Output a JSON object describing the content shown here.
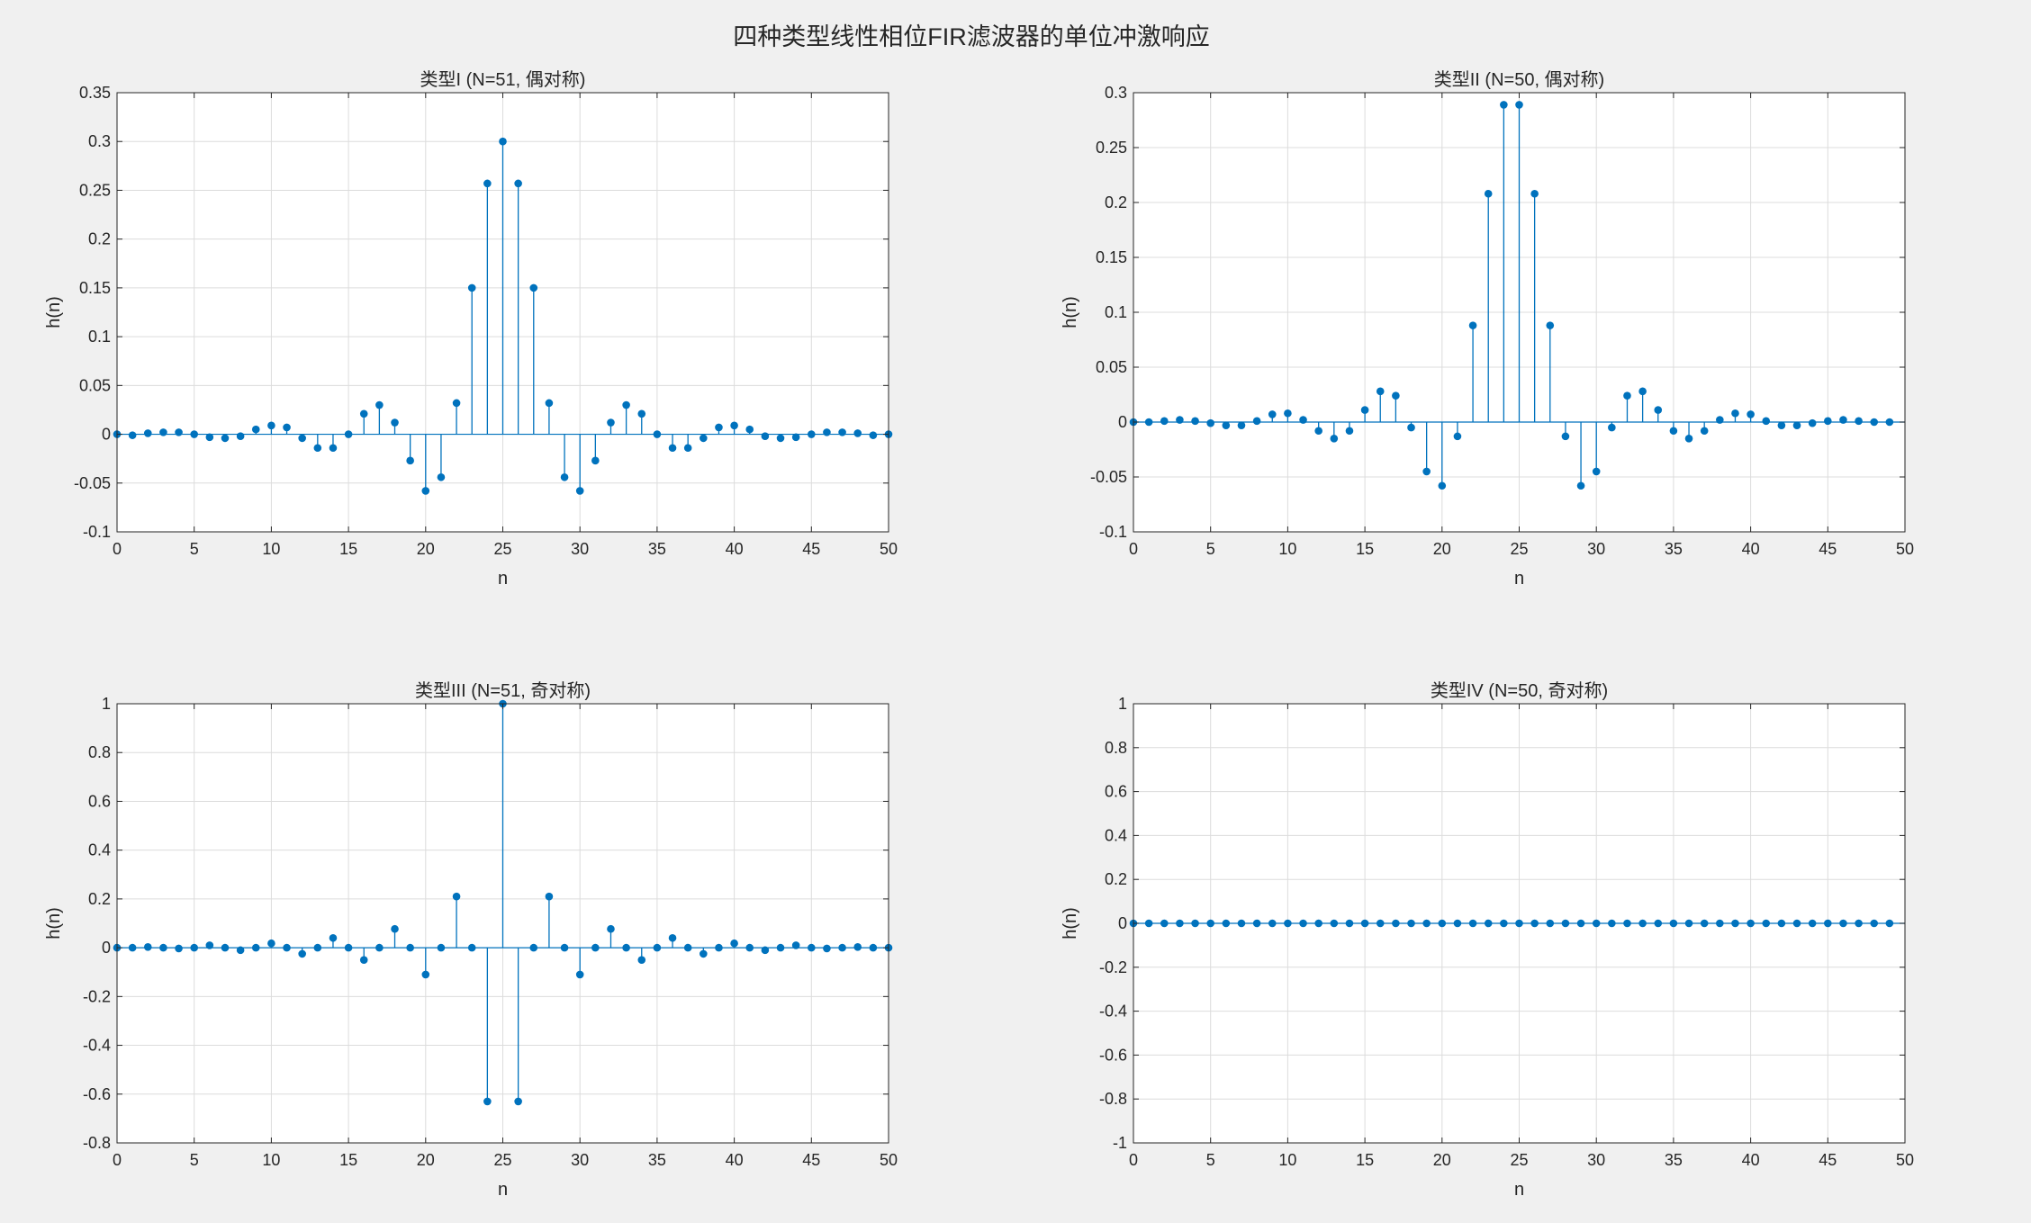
{
  "figure_title": "四种类型线性相位FIR滤波器的单位冲激响应",
  "chart_data": [
    {
      "type": "stem",
      "title": "类型I (N=51, 偶对称)",
      "xlabel": "n",
      "ylabel": "h(n)",
      "xlim": [
        0,
        50
      ],
      "ylim": [
        -0.1,
        0.35
      ],
      "xticks": [
        0,
        5,
        10,
        15,
        20,
        25,
        30,
        35,
        40,
        45,
        50
      ],
      "yticks": [
        -0.1,
        -0.05,
        0,
        0.05,
        0.1,
        0.15,
        0.2,
        0.25,
        0.3,
        0.35
      ],
      "grid": true,
      "color": "#0072bd",
      "x": [
        0,
        1,
        2,
        3,
        4,
        5,
        6,
        7,
        8,
        9,
        10,
        11,
        12,
        13,
        14,
        15,
        16,
        17,
        18,
        19,
        20,
        21,
        22,
        23,
        24,
        25,
        26,
        27,
        28,
        29,
        30,
        31,
        32,
        33,
        34,
        35,
        36,
        37,
        38,
        39,
        40,
        41,
        42,
        43,
        44,
        45,
        46,
        47,
        48,
        49,
        50
      ],
      "values": [
        0,
        -0.001,
        0.001,
        0.002,
        0.002,
        0,
        -0.003,
        -0.004,
        -0.002,
        0.005,
        0.009,
        0.007,
        -0.004,
        -0.014,
        -0.014,
        0,
        0.021,
        0.03,
        0.012,
        -0.027,
        -0.058,
        -0.044,
        0.032,
        0.15,
        0.257,
        0.3,
        0.257,
        0.15,
        0.032,
        -0.044,
        -0.058,
        -0.027,
        0.012,
        0.03,
        0.021,
        0,
        -0.014,
        -0.014,
        -0.004,
        0.007,
        0.009,
        0.005,
        -0.002,
        -0.004,
        -0.003,
        0,
        0.002,
        0.002,
        0.001,
        -0.001,
        0
      ]
    },
    {
      "type": "stem",
      "title": "类型II (N=50, 偶对称)",
      "xlabel": "n",
      "ylabel": "h(n)",
      "xlim": [
        0,
        50
      ],
      "ylim": [
        -0.1,
        0.3
      ],
      "xticks": [
        0,
        5,
        10,
        15,
        20,
        25,
        30,
        35,
        40,
        45,
        50
      ],
      "yticks": [
        -0.1,
        -0.05,
        0,
        0.05,
        0.1,
        0.15,
        0.2,
        0.25,
        0.3
      ],
      "grid": true,
      "color": "#0072bd",
      "x": [
        0,
        1,
        2,
        3,
        4,
        5,
        6,
        7,
        8,
        9,
        10,
        11,
        12,
        13,
        14,
        15,
        16,
        17,
        18,
        19,
        20,
        21,
        22,
        23,
        24,
        25,
        26,
        27,
        28,
        29,
        30,
        31,
        32,
        33,
        34,
        35,
        36,
        37,
        38,
        39,
        40,
        41,
        42,
        43,
        44,
        45,
        46,
        47,
        48,
        49
      ],
      "values": [
        0,
        0,
        0.001,
        0.002,
        0.001,
        -0.001,
        -0.003,
        -0.003,
        0.001,
        0.007,
        0.008,
        0.002,
        -0.008,
        -0.015,
        -0.008,
        0.011,
        0.028,
        0.024,
        -0.005,
        -0.045,
        -0.058,
        -0.013,
        0.088,
        0.208,
        0.289,
        0.289,
        0.208,
        0.088,
        -0.013,
        -0.058,
        -0.045,
        -0.005,
        0.024,
        0.028,
        0.011,
        -0.008,
        -0.015,
        -0.008,
        0.002,
        0.008,
        0.007,
        0.001,
        -0.003,
        -0.003,
        -0.001,
        0.001,
        0.002,
        0.001,
        0,
        0
      ]
    },
    {
      "type": "stem",
      "title": "类型III (N=51, 奇对称)",
      "xlabel": "n",
      "ylabel": "h(n)",
      "xlim": [
        0,
        50
      ],
      "ylim": [
        -0.8,
        1
      ],
      "xticks": [
        0,
        5,
        10,
        15,
        20,
        25,
        30,
        35,
        40,
        45,
        50
      ],
      "yticks": [
        -0.8,
        -0.6,
        -0.4,
        -0.2,
        0,
        0.2,
        0.4,
        0.6,
        0.8,
        1
      ],
      "grid": true,
      "color": "#0072bd",
      "x": [
        0,
        1,
        2,
        3,
        4,
        5,
        6,
        7,
        8,
        9,
        10,
        11,
        12,
        13,
        14,
        15,
        16,
        17,
        18,
        19,
        20,
        21,
        22,
        23,
        24,
        25,
        26,
        27,
        28,
        29,
        30,
        31,
        32,
        33,
        34,
        35,
        36,
        37,
        38,
        39,
        40,
        41,
        42,
        43,
        44,
        45,
        46,
        47,
        48,
        49,
        50
      ],
      "values": [
        0,
        0,
        0.003,
        0,
        -0.003,
        0,
        0.01,
        0,
        -0.01,
        0,
        0.018,
        0,
        -0.025,
        0,
        0.04,
        0,
        -0.05,
        0,
        0.077,
        0,
        -0.11,
        0,
        0.21,
        0,
        -0.63,
        1,
        -0.63,
        0,
        0.21,
        0,
        -0.11,
        0,
        0.077,
        0,
        -0.05,
        0,
        0.04,
        0,
        -0.025,
        0,
        0.018,
        0,
        -0.01,
        0,
        0.01,
        0,
        -0.003,
        0,
        0.003,
        0,
        0
      ]
    },
    {
      "type": "stem",
      "title": "类型IV (N=50, 奇对称)",
      "xlabel": "n",
      "ylabel": "h(n)",
      "xlim": [
        0,
        50
      ],
      "ylim": [
        -1,
        1
      ],
      "xticks": [
        0,
        5,
        10,
        15,
        20,
        25,
        30,
        35,
        40,
        45,
        50
      ],
      "yticks": [
        -1,
        -0.8,
        -0.6,
        -0.4,
        -0.2,
        0,
        0.2,
        0.4,
        0.6,
        0.8,
        1
      ],
      "grid": true,
      "color": "#0072bd",
      "x": [
        0,
        1,
        2,
        3,
        4,
        5,
        6,
        7,
        8,
        9,
        10,
        11,
        12,
        13,
        14,
        15,
        16,
        17,
        18,
        19,
        20,
        21,
        22,
        23,
        24,
        25,
        26,
        27,
        28,
        29,
        30,
        31,
        32,
        33,
        34,
        35,
        36,
        37,
        38,
        39,
        40,
        41,
        42,
        43,
        44,
        45,
        46,
        47,
        48,
        49
      ],
      "values": [
        0,
        0,
        0,
        0,
        0,
        0,
        0,
        0,
        0,
        0,
        0,
        0,
        0,
        0,
        0,
        0,
        0,
        0,
        0,
        0,
        0,
        0,
        0,
        0,
        0,
        0,
        0,
        0,
        0,
        0,
        0,
        0,
        0,
        0,
        0,
        0,
        0,
        0,
        0,
        0,
        0,
        0,
        0,
        0,
        0,
        0,
        0,
        0,
        0,
        0
      ]
    }
  ]
}
